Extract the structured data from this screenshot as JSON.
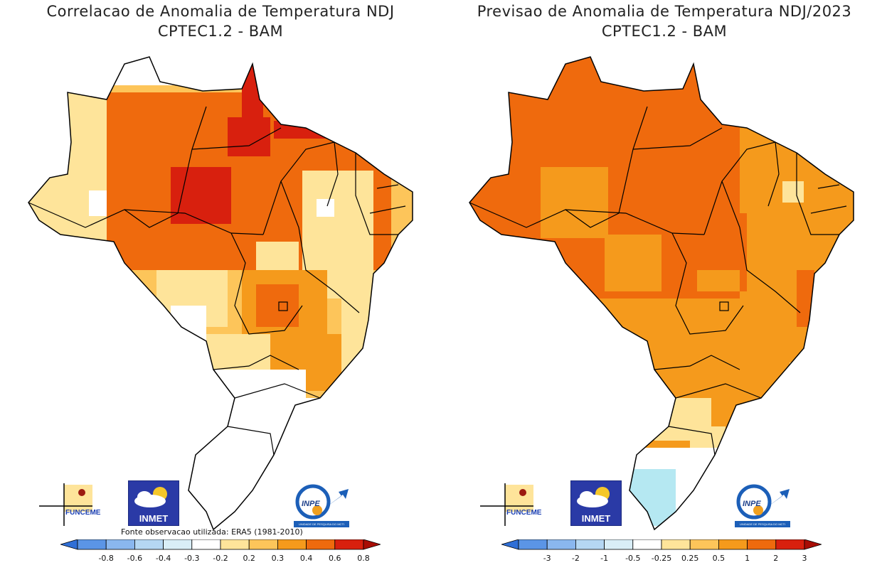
{
  "left_panel": {
    "title_line1": "Correlacao de Anomalia de Temperatura NDJ",
    "title_line2": "CPTEC1.2 - BAM",
    "source_note": "Fonte observacao utilizada: ERA5 (1981-2010)",
    "colorbar_ticks": [
      "-0.8",
      "-0.6",
      "-0.4",
      "-0.3",
      "-0.2",
      "0.2",
      "0.3",
      "0.4",
      "0.6",
      "0.8"
    ],
    "colorbar_colors": [
      "#2f6fd6",
      "#5b95e6",
      "#8ab7ef",
      "#b5d7f3",
      "#d9eef7",
      "#ffffff",
      "#fee49a",
      "#fdc55a",
      "#f59a1c",
      "#ef6a0d",
      "#d8200e",
      "#a80d05"
    ]
  },
  "right_panel": {
    "title_line1": "Previsao de Anomalia de Temperatura NDJ/2023",
    "title_line2": "CPTEC1.2 - BAM",
    "colorbar_ticks": [
      "-3",
      "-2",
      "-1",
      "-0.5",
      "-0.25",
      "0.25",
      "0.5",
      "1",
      "2",
      "3"
    ],
    "colorbar_colors": [
      "#2f6fd6",
      "#5b95e6",
      "#8ab7ef",
      "#b5d7f3",
      "#d9eef7",
      "#ffffff",
      "#fee49a",
      "#fdc55a",
      "#f59a1c",
      "#ef6a0d",
      "#d8200e",
      "#a80d05"
    ]
  },
  "logos": {
    "funceme": "FUNCEME",
    "inmet": "INMET",
    "inpe": "INPE",
    "inpe_tagline": "UNIDADE DE PESQUISA DO MCTI"
  },
  "map_colors": {
    "white": "#ffffff",
    "light_yellow": "#fee49a",
    "yellow_orange": "#fdc55a",
    "orange": "#f59a1c",
    "dark_orange": "#ef6a0d",
    "red": "#d8200e",
    "light_blue": "#b5e8f2",
    "border": "#000000"
  }
}
